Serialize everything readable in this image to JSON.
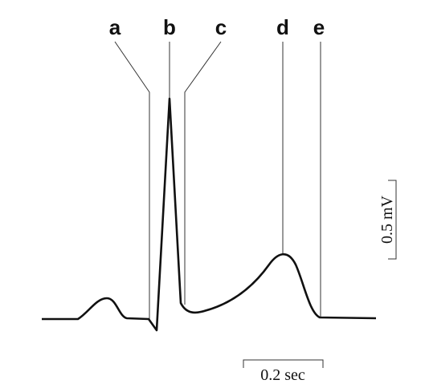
{
  "labels": [
    "a",
    "b",
    "c",
    "d",
    "e"
  ],
  "time_scale": "0.2 sec",
  "voltage_scale": "0.5 mV"
}
